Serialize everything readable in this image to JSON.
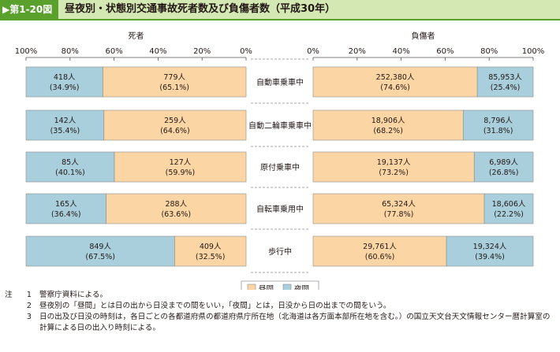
{
  "figure": {
    "label": "▶第1-20図",
    "title": "昼夜別・状態別交通事故死者数及び負傷者数（平成30年）"
  },
  "chart_data": [
    {
      "type": "bar",
      "orientation": "horizontal",
      "direction": "right-to-left",
      "stacked": true,
      "title": "死者",
      "xlim": [
        0,
        100
      ],
      "ticks": [
        "0%",
        "20%",
        "40%",
        "60%",
        "80%",
        "100%"
      ],
      "categories": [
        "自動車乗車中",
        "自動二輪車乗車中",
        "原付乗車中",
        "自転車乗用中",
        "歩行中"
      ],
      "series": [
        {
          "name": "昼間",
          "color": "#fbd5a4",
          "values": [
            65.1,
            64.6,
            59.9,
            63.6,
            32.5
          ],
          "labels": [
            [
              "779人",
              "(65.1%)"
            ],
            [
              "259人",
              "(64.6%)"
            ],
            [
              "127人",
              "(59.9%)"
            ],
            [
              "288人",
              "(63.6%)"
            ],
            [
              "409人",
              "(32.5%)"
            ]
          ]
        },
        {
          "name": "夜間",
          "color": "#a9cfdd",
          "values": [
            34.9,
            35.4,
            40.1,
            36.4,
            67.5
          ],
          "labels": [
            [
              "418人",
              "(34.9%)"
            ],
            [
              "142人",
              "(35.4%)"
            ],
            [
              "85人",
              "(40.1%)"
            ],
            [
              "165人",
              "(36.4%)"
            ],
            [
              "849人",
              "(67.5%)"
            ]
          ]
        }
      ]
    },
    {
      "type": "bar",
      "orientation": "horizontal",
      "direction": "left-to-right",
      "stacked": true,
      "title": "負傷者",
      "xlim": [
        0,
        100
      ],
      "ticks": [
        "0%",
        "20%",
        "40%",
        "60%",
        "80%",
        "100%"
      ],
      "categories": [
        "自動車乗車中",
        "自動二輪車乗車中",
        "原付乗車中",
        "自転車乗用中",
        "歩行中"
      ],
      "series": [
        {
          "name": "昼間",
          "color": "#fbd5a4",
          "values": [
            74.6,
            68.2,
            73.2,
            77.8,
            60.6
          ],
          "labels": [
            [
              "252,380人",
              "(74.6%)"
            ],
            [
              "18,906人",
              "(68.2%)"
            ],
            [
              "19,137人",
              "(73.2%)"
            ],
            [
              "65,324人",
              "(77.8%)"
            ],
            [
              "29,761人",
              "(60.6%)"
            ]
          ]
        },
        {
          "name": "夜間",
          "color": "#a9cfdd",
          "values": [
            25.4,
            31.8,
            26.8,
            22.2,
            39.4
          ],
          "labels": [
            [
              "85,953人",
              "(25.4%)"
            ],
            [
              "8,796人",
              "(31.8%)"
            ],
            [
              "6,989人",
              "(26.8%)"
            ],
            [
              "18,606人",
              "(22.2%)"
            ],
            [
              "19,324人",
              "(39.4%)"
            ]
          ]
        }
      ]
    }
  ],
  "legend": {
    "items": [
      {
        "label": "昼間",
        "color": "#fbd5a4"
      },
      {
        "label": "夜間",
        "color": "#a9cfdd"
      }
    ]
  },
  "notes": [
    {
      "prefix": "注",
      "num": "1",
      "text": "警察庁資料による。"
    },
    {
      "prefix": "",
      "num": "2",
      "text": "昼夜別の「昼間」とは日の出から日没までの間をいい，「夜間」とは，日没から日の出までの間をいう。"
    },
    {
      "prefix": "",
      "num": "3",
      "text": "日の出及び日没の時刻は，各日ごとの各都道府県の都道府県庁所在地（北海道は各方面本部所在地を含む。）の国立天文台天文情報センター暦計算室の"
    },
    {
      "prefix": "",
      "num": "",
      "text": "計算による日の出入り時刻による。"
    }
  ]
}
